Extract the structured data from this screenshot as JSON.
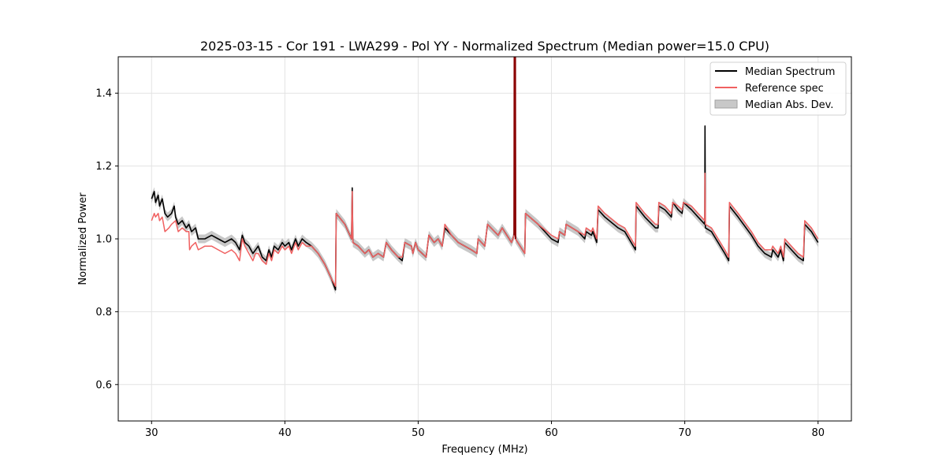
{
  "chart_data": {
    "type": "line",
    "title": "2025-03-15 - Cor 191 - LWA299 - Pol YY - Normalized Spectrum (Median power=15.0 CPU)",
    "xlabel": "Frequency (MHz)",
    "ylabel": "Normalized Power",
    "xlim": [
      27.5,
      82.5
    ],
    "ylim": [
      0.5,
      1.5
    ],
    "xticks": [
      30,
      40,
      50,
      60,
      70,
      80
    ],
    "yticks": [
      0.6,
      0.8,
      1.0,
      1.2,
      1.4
    ],
    "xtick_labels": [
      "30",
      "40",
      "50",
      "60",
      "70",
      "80"
    ],
    "ytick_labels": [
      "0.6",
      "0.8",
      "1.0",
      "1.2",
      "1.4"
    ],
    "grid": true,
    "legend_position": "top-right",
    "legend": [
      "Median Spectrum",
      "Reference spec",
      "Median Abs. Dev."
    ],
    "series": [
      {
        "name": "Median Spectrum",
        "color": "#000000",
        "points": [
          [
            30.0,
            1.11
          ],
          [
            30.2,
            1.13
          ],
          [
            30.3,
            1.1
          ],
          [
            30.5,
            1.12
          ],
          [
            30.6,
            1.09
          ],
          [
            30.8,
            1.11
          ],
          [
            31.0,
            1.07
          ],
          [
            31.2,
            1.06
          ],
          [
            31.5,
            1.07
          ],
          [
            31.7,
            1.09
          ],
          [
            31.8,
            1.06
          ],
          [
            32.0,
            1.04
          ],
          [
            32.3,
            1.05
          ],
          [
            32.6,
            1.03
          ],
          [
            32.8,
            1.04
          ],
          [
            33.0,
            1.02
          ],
          [
            33.3,
            1.03
          ],
          [
            33.5,
            1.0
          ],
          [
            34.0,
            1.0
          ],
          [
            34.5,
            1.01
          ],
          [
            35.0,
            1.0
          ],
          [
            35.5,
            0.99
          ],
          [
            36.0,
            1.0
          ],
          [
            36.3,
            0.99
          ],
          [
            36.6,
            0.97
          ],
          [
            36.8,
            1.01
          ],
          [
            37.0,
            0.99
          ],
          [
            37.3,
            0.98
          ],
          [
            37.6,
            0.96
          ],
          [
            37.8,
            0.97
          ],
          [
            38.0,
            0.98
          ],
          [
            38.3,
            0.95
          ],
          [
            38.6,
            0.94
          ],
          [
            38.8,
            0.97
          ],
          [
            39.0,
            0.95
          ],
          [
            39.2,
            0.98
          ],
          [
            39.5,
            0.97
          ],
          [
            39.8,
            0.99
          ],
          [
            40.0,
            0.98
          ],
          [
            40.3,
            0.99
          ],
          [
            40.5,
            0.97
          ],
          [
            40.8,
            1.0
          ],
          [
            41.0,
            0.98
          ],
          [
            41.3,
            1.0
          ],
          [
            41.6,
            0.99
          ],
          [
            42.0,
            0.98
          ],
          [
            42.5,
            0.96
          ],
          [
            43.0,
            0.93
          ],
          [
            43.5,
            0.89
          ],
          [
            43.8,
            0.86
          ],
          [
            43.85,
            1.07
          ],
          [
            44.5,
            1.04
          ],
          [
            45.0,
            1.0
          ],
          [
            45.05,
            1.14
          ],
          [
            45.1,
            0.99
          ],
          [
            45.5,
            0.98
          ],
          [
            46.0,
            0.96
          ],
          [
            46.3,
            0.97
          ],
          [
            46.6,
            0.95
          ],
          [
            47.0,
            0.96
          ],
          [
            47.4,
            0.95
          ],
          [
            47.6,
            0.99
          ],
          [
            48.0,
            0.97
          ],
          [
            48.5,
            0.95
          ],
          [
            48.8,
            0.94
          ],
          [
            49.0,
            0.99
          ],
          [
            49.5,
            0.98
          ],
          [
            49.6,
            0.96
          ],
          [
            49.8,
            0.99
          ],
          [
            50.0,
            0.97
          ],
          [
            50.3,
            0.96
          ],
          [
            50.6,
            0.95
          ],
          [
            50.8,
            1.01
          ],
          [
            51.2,
            0.99
          ],
          [
            51.5,
            1.0
          ],
          [
            51.8,
            0.98
          ],
          [
            52.0,
            1.03
          ],
          [
            52.5,
            1.01
          ],
          [
            53.0,
            0.99
          ],
          [
            54.0,
            0.97
          ],
          [
            54.4,
            0.96
          ],
          [
            54.5,
            1.0
          ],
          [
            55.0,
            0.98
          ],
          [
            55.2,
            1.04
          ],
          [
            56.0,
            1.01
          ],
          [
            56.3,
            1.03
          ],
          [
            57.0,
            0.99
          ],
          [
            57.2,
            1.01
          ],
          [
            57.22,
            1.5
          ],
          [
            57.28,
            1.5
          ],
          [
            57.3,
            1.0
          ],
          [
            58.0,
            0.96
          ],
          [
            58.05,
            1.07
          ],
          [
            59.0,
            1.04
          ],
          [
            60.0,
            1.0
          ],
          [
            60.5,
            0.99
          ],
          [
            60.6,
            1.02
          ],
          [
            61.0,
            1.01
          ],
          [
            61.1,
            1.04
          ],
          [
            62.0,
            1.02
          ],
          [
            62.5,
            1.0
          ],
          [
            62.6,
            1.02
          ],
          [
            63.0,
            1.01
          ],
          [
            63.1,
            1.02
          ],
          [
            63.4,
            0.99
          ],
          [
            63.5,
            1.08
          ],
          [
            64.0,
            1.06
          ],
          [
            65.0,
            1.03
          ],
          [
            65.5,
            1.02
          ],
          [
            66.3,
            0.97
          ],
          [
            66.35,
            1.09
          ],
          [
            67.0,
            1.06
          ],
          [
            67.8,
            1.03
          ],
          [
            68.0,
            1.03
          ],
          [
            68.05,
            1.09
          ],
          [
            68.5,
            1.08
          ],
          [
            69.0,
            1.06
          ],
          [
            69.1,
            1.1
          ],
          [
            69.5,
            1.08
          ],
          [
            69.8,
            1.07
          ],
          [
            69.9,
            1.1
          ],
          [
            70.5,
            1.08
          ],
          [
            71.0,
            1.06
          ],
          [
            71.5,
            1.04
          ],
          [
            71.52,
            1.31
          ],
          [
            71.55,
            1.03
          ],
          [
            72.0,
            1.02
          ],
          [
            73.0,
            0.96
          ],
          [
            73.3,
            0.94
          ],
          [
            73.35,
            1.09
          ],
          [
            74.0,
            1.06
          ],
          [
            75.0,
            1.01
          ],
          [
            75.5,
            0.98
          ],
          [
            76.0,
            0.96
          ],
          [
            76.5,
            0.95
          ],
          [
            76.6,
            0.97
          ],
          [
            77.0,
            0.95
          ],
          [
            77.2,
            0.97
          ],
          [
            77.4,
            0.94
          ],
          [
            77.5,
            0.99
          ],
          [
            78.0,
            0.97
          ],
          [
            78.5,
            0.95
          ],
          [
            78.9,
            0.94
          ],
          [
            79.0,
            1.04
          ],
          [
            79.5,
            1.02
          ],
          [
            80.0,
            0.99
          ]
        ]
      },
      {
        "name": "Reference spec",
        "color": "#f06060",
        "points": [
          [
            30.0,
            1.05
          ],
          [
            30.2,
            1.07
          ],
          [
            30.3,
            1.06
          ],
          [
            30.5,
            1.07
          ],
          [
            30.6,
            1.05
          ],
          [
            30.8,
            1.06
          ],
          [
            31.0,
            1.02
          ],
          [
            31.3,
            1.03
          ],
          [
            31.5,
            1.04
          ],
          [
            31.8,
            1.05
          ],
          [
            32.0,
            1.02
          ],
          [
            32.3,
            1.03
          ],
          [
            32.6,
            1.02
          ],
          [
            32.8,
            1.02
          ],
          [
            32.85,
            0.97
          ],
          [
            33.0,
            0.98
          ],
          [
            33.3,
            0.99
          ],
          [
            33.5,
            0.97
          ],
          [
            34.0,
            0.98
          ],
          [
            34.5,
            0.98
          ],
          [
            35.0,
            0.97
          ],
          [
            35.5,
            0.96
          ],
          [
            36.0,
            0.97
          ],
          [
            36.3,
            0.96
          ],
          [
            36.6,
            0.94
          ],
          [
            36.8,
            1.0
          ],
          [
            37.0,
            0.98
          ],
          [
            37.3,
            0.96
          ],
          [
            37.6,
            0.94
          ],
          [
            37.8,
            0.96
          ],
          [
            38.0,
            0.96
          ],
          [
            38.3,
            0.94
          ],
          [
            38.6,
            0.93
          ],
          [
            38.8,
            0.96
          ],
          [
            39.0,
            0.94
          ],
          [
            39.2,
            0.97
          ],
          [
            39.5,
            0.96
          ],
          [
            39.8,
            0.98
          ],
          [
            40.0,
            0.97
          ],
          [
            40.3,
            0.98
          ],
          [
            40.5,
            0.96
          ],
          [
            40.8,
            0.99
          ],
          [
            41.0,
            0.97
          ],
          [
            41.3,
            0.99
          ],
          [
            41.6,
            0.98
          ],
          [
            42.0,
            0.98
          ],
          [
            42.5,
            0.96
          ],
          [
            43.0,
            0.93
          ],
          [
            43.5,
            0.89
          ],
          [
            43.8,
            0.87
          ],
          [
            43.85,
            1.07
          ],
          [
            44.5,
            1.04
          ],
          [
            45.0,
            1.0
          ],
          [
            45.05,
            1.13
          ],
          [
            45.1,
            0.99
          ],
          [
            45.5,
            0.98
          ],
          [
            46.0,
            0.96
          ],
          [
            46.3,
            0.97
          ],
          [
            46.6,
            0.95
          ],
          [
            47.0,
            0.96
          ],
          [
            47.4,
            0.95
          ],
          [
            47.6,
            0.99
          ],
          [
            48.0,
            0.97
          ],
          [
            48.5,
            0.95
          ],
          [
            48.8,
            0.95
          ],
          [
            49.0,
            0.99
          ],
          [
            49.5,
            0.98
          ],
          [
            49.6,
            0.96
          ],
          [
            49.8,
            0.99
          ],
          [
            50.0,
            0.97
          ],
          [
            50.3,
            0.96
          ],
          [
            50.6,
            0.95
          ],
          [
            50.8,
            1.01
          ],
          [
            51.2,
            0.99
          ],
          [
            51.5,
            1.0
          ],
          [
            51.8,
            0.98
          ],
          [
            52.0,
            1.04
          ],
          [
            52.5,
            1.01
          ],
          [
            53.0,
            0.99
          ],
          [
            54.0,
            0.97
          ],
          [
            54.4,
            0.96
          ],
          [
            54.5,
            1.0
          ],
          [
            55.0,
            0.98
          ],
          [
            55.2,
            1.04
          ],
          [
            56.0,
            1.01
          ],
          [
            56.3,
            1.03
          ],
          [
            57.0,
            0.99
          ],
          [
            57.2,
            1.01
          ],
          [
            57.22,
            1.5
          ],
          [
            57.28,
            1.5
          ],
          [
            57.3,
            1.0
          ],
          [
            58.0,
            0.96
          ],
          [
            58.05,
            1.07
          ],
          [
            59.0,
            1.04
          ],
          [
            60.0,
            1.01
          ],
          [
            60.5,
            1.0
          ],
          [
            60.6,
            1.02
          ],
          [
            61.0,
            1.01
          ],
          [
            61.1,
            1.04
          ],
          [
            62.0,
            1.02
          ],
          [
            62.5,
            1.01
          ],
          [
            62.6,
            1.03
          ],
          [
            63.0,
            1.02
          ],
          [
            63.1,
            1.03
          ],
          [
            63.4,
            1.0
          ],
          [
            63.5,
            1.09
          ],
          [
            64.0,
            1.07
          ],
          [
            65.0,
            1.04
          ],
          [
            65.5,
            1.03
          ],
          [
            66.3,
            0.98
          ],
          [
            66.35,
            1.1
          ],
          [
            67.0,
            1.07
          ],
          [
            67.8,
            1.04
          ],
          [
            68.0,
            1.04
          ],
          [
            68.05,
            1.1
          ],
          [
            68.5,
            1.09
          ],
          [
            69.0,
            1.07
          ],
          [
            69.1,
            1.1
          ],
          [
            69.5,
            1.09
          ],
          [
            69.8,
            1.08
          ],
          [
            69.9,
            1.1
          ],
          [
            70.5,
            1.09
          ],
          [
            71.0,
            1.07
          ],
          [
            71.5,
            1.05
          ],
          [
            71.52,
            1.18
          ],
          [
            71.55,
            1.04
          ],
          [
            72.0,
            1.03
          ],
          [
            73.0,
            0.97
          ],
          [
            73.3,
            0.95
          ],
          [
            73.35,
            1.1
          ],
          [
            74.0,
            1.07
          ],
          [
            75.0,
            1.02
          ],
          [
            75.5,
            0.99
          ],
          [
            76.0,
            0.97
          ],
          [
            76.5,
            0.97
          ],
          [
            76.6,
            0.98
          ],
          [
            77.0,
            0.96
          ],
          [
            77.2,
            0.98
          ],
          [
            77.4,
            0.95
          ],
          [
            77.5,
            1.0
          ],
          [
            78.0,
            0.98
          ],
          [
            78.5,
            0.96
          ],
          [
            78.9,
            0.95
          ],
          [
            79.0,
            1.05
          ],
          [
            79.5,
            1.03
          ],
          [
            80.0,
            1.0
          ]
        ]
      }
    ],
    "band": {
      "name": "Median Abs. Dev.",
      "color": "#b0b0b0",
      "half_width": 0.012
    }
  }
}
